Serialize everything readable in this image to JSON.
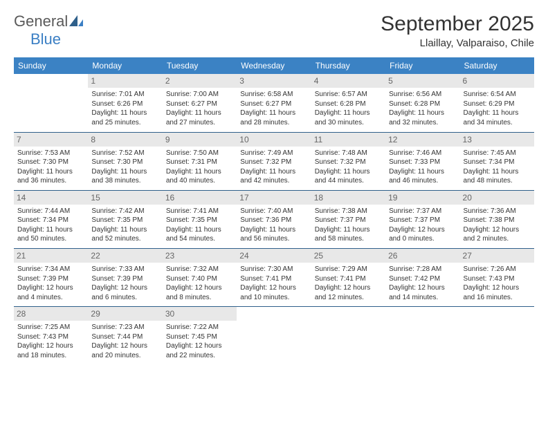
{
  "logo": {
    "text1": "General",
    "text2": "Blue"
  },
  "title": "September 2025",
  "location": "Llaillay, Valparaiso, Chile",
  "colors": {
    "header_bg": "#3b82c4",
    "header_text": "#ffffff",
    "daynum_bg": "#e8e8e8",
    "daynum_text": "#666666",
    "border": "#2e5f8a",
    "logo_gray": "#5a5a5a",
    "logo_blue": "#3b7fc4"
  },
  "weekdays": [
    "Sunday",
    "Monday",
    "Tuesday",
    "Wednesday",
    "Thursday",
    "Friday",
    "Saturday"
  ],
  "weeks": [
    [
      null,
      {
        "n": "1",
        "sr": "Sunrise: 7:01 AM",
        "ss": "Sunset: 6:26 PM",
        "d1": "Daylight: 11 hours",
        "d2": "and 25 minutes."
      },
      {
        "n": "2",
        "sr": "Sunrise: 7:00 AM",
        "ss": "Sunset: 6:27 PM",
        "d1": "Daylight: 11 hours",
        "d2": "and 27 minutes."
      },
      {
        "n": "3",
        "sr": "Sunrise: 6:58 AM",
        "ss": "Sunset: 6:27 PM",
        "d1": "Daylight: 11 hours",
        "d2": "and 28 minutes."
      },
      {
        "n": "4",
        "sr": "Sunrise: 6:57 AM",
        "ss": "Sunset: 6:28 PM",
        "d1": "Daylight: 11 hours",
        "d2": "and 30 minutes."
      },
      {
        "n": "5",
        "sr": "Sunrise: 6:56 AM",
        "ss": "Sunset: 6:28 PM",
        "d1": "Daylight: 11 hours",
        "d2": "and 32 minutes."
      },
      {
        "n": "6",
        "sr": "Sunrise: 6:54 AM",
        "ss": "Sunset: 6:29 PM",
        "d1": "Daylight: 11 hours",
        "d2": "and 34 minutes."
      }
    ],
    [
      {
        "n": "7",
        "sr": "Sunrise: 7:53 AM",
        "ss": "Sunset: 7:30 PM",
        "d1": "Daylight: 11 hours",
        "d2": "and 36 minutes."
      },
      {
        "n": "8",
        "sr": "Sunrise: 7:52 AM",
        "ss": "Sunset: 7:30 PM",
        "d1": "Daylight: 11 hours",
        "d2": "and 38 minutes."
      },
      {
        "n": "9",
        "sr": "Sunrise: 7:50 AM",
        "ss": "Sunset: 7:31 PM",
        "d1": "Daylight: 11 hours",
        "d2": "and 40 minutes."
      },
      {
        "n": "10",
        "sr": "Sunrise: 7:49 AM",
        "ss": "Sunset: 7:32 PM",
        "d1": "Daylight: 11 hours",
        "d2": "and 42 minutes."
      },
      {
        "n": "11",
        "sr": "Sunrise: 7:48 AM",
        "ss": "Sunset: 7:32 PM",
        "d1": "Daylight: 11 hours",
        "d2": "and 44 minutes."
      },
      {
        "n": "12",
        "sr": "Sunrise: 7:46 AM",
        "ss": "Sunset: 7:33 PM",
        "d1": "Daylight: 11 hours",
        "d2": "and 46 minutes."
      },
      {
        "n": "13",
        "sr": "Sunrise: 7:45 AM",
        "ss": "Sunset: 7:34 PM",
        "d1": "Daylight: 11 hours",
        "d2": "and 48 minutes."
      }
    ],
    [
      {
        "n": "14",
        "sr": "Sunrise: 7:44 AM",
        "ss": "Sunset: 7:34 PM",
        "d1": "Daylight: 11 hours",
        "d2": "and 50 minutes."
      },
      {
        "n": "15",
        "sr": "Sunrise: 7:42 AM",
        "ss": "Sunset: 7:35 PM",
        "d1": "Daylight: 11 hours",
        "d2": "and 52 minutes."
      },
      {
        "n": "16",
        "sr": "Sunrise: 7:41 AM",
        "ss": "Sunset: 7:35 PM",
        "d1": "Daylight: 11 hours",
        "d2": "and 54 minutes."
      },
      {
        "n": "17",
        "sr": "Sunrise: 7:40 AM",
        "ss": "Sunset: 7:36 PM",
        "d1": "Daylight: 11 hours",
        "d2": "and 56 minutes."
      },
      {
        "n": "18",
        "sr": "Sunrise: 7:38 AM",
        "ss": "Sunset: 7:37 PM",
        "d1": "Daylight: 11 hours",
        "d2": "and 58 minutes."
      },
      {
        "n": "19",
        "sr": "Sunrise: 7:37 AM",
        "ss": "Sunset: 7:37 PM",
        "d1": "Daylight: 12 hours",
        "d2": "and 0 minutes."
      },
      {
        "n": "20",
        "sr": "Sunrise: 7:36 AM",
        "ss": "Sunset: 7:38 PM",
        "d1": "Daylight: 12 hours",
        "d2": "and 2 minutes."
      }
    ],
    [
      {
        "n": "21",
        "sr": "Sunrise: 7:34 AM",
        "ss": "Sunset: 7:39 PM",
        "d1": "Daylight: 12 hours",
        "d2": "and 4 minutes."
      },
      {
        "n": "22",
        "sr": "Sunrise: 7:33 AM",
        "ss": "Sunset: 7:39 PM",
        "d1": "Daylight: 12 hours",
        "d2": "and 6 minutes."
      },
      {
        "n": "23",
        "sr": "Sunrise: 7:32 AM",
        "ss": "Sunset: 7:40 PM",
        "d1": "Daylight: 12 hours",
        "d2": "and 8 minutes."
      },
      {
        "n": "24",
        "sr": "Sunrise: 7:30 AM",
        "ss": "Sunset: 7:41 PM",
        "d1": "Daylight: 12 hours",
        "d2": "and 10 minutes."
      },
      {
        "n": "25",
        "sr": "Sunrise: 7:29 AM",
        "ss": "Sunset: 7:41 PM",
        "d1": "Daylight: 12 hours",
        "d2": "and 12 minutes."
      },
      {
        "n": "26",
        "sr": "Sunrise: 7:28 AM",
        "ss": "Sunset: 7:42 PM",
        "d1": "Daylight: 12 hours",
        "d2": "and 14 minutes."
      },
      {
        "n": "27",
        "sr": "Sunrise: 7:26 AM",
        "ss": "Sunset: 7:43 PM",
        "d1": "Daylight: 12 hours",
        "d2": "and 16 minutes."
      }
    ],
    [
      {
        "n": "28",
        "sr": "Sunrise: 7:25 AM",
        "ss": "Sunset: 7:43 PM",
        "d1": "Daylight: 12 hours",
        "d2": "and 18 minutes."
      },
      {
        "n": "29",
        "sr": "Sunrise: 7:23 AM",
        "ss": "Sunset: 7:44 PM",
        "d1": "Daylight: 12 hours",
        "d2": "and 20 minutes."
      },
      {
        "n": "30",
        "sr": "Sunrise: 7:22 AM",
        "ss": "Sunset: 7:45 PM",
        "d1": "Daylight: 12 hours",
        "d2": "and 22 minutes."
      },
      null,
      null,
      null,
      null
    ]
  ]
}
